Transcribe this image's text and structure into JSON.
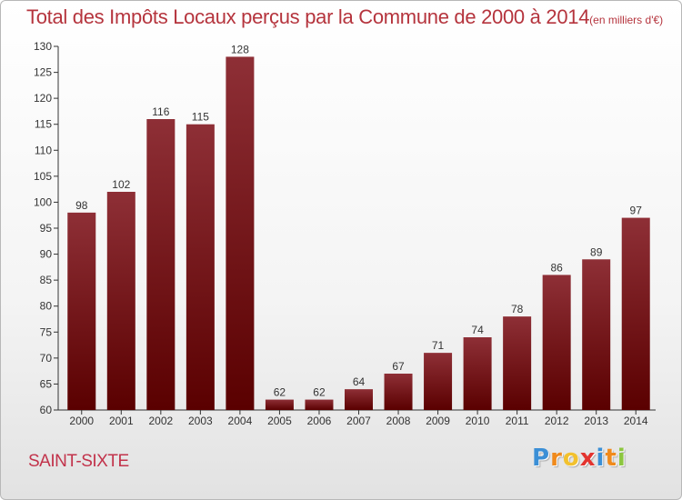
{
  "chart_data": {
    "type": "bar",
    "title": "Total des Impôts Locaux perçus par la Commune de 2000 à 2014",
    "unit": "(en milliers d'€)",
    "categories": [
      "2000",
      "2001",
      "2002",
      "2003",
      "2004",
      "2005",
      "2006",
      "2007",
      "2008",
      "2009",
      "2010",
      "2011",
      "2012",
      "2013",
      "2014"
    ],
    "values": [
      98,
      102,
      116,
      115,
      128,
      62,
      62,
      64,
      67,
      71,
      74,
      78,
      86,
      89,
      97
    ],
    "ylim": [
      60,
      130
    ],
    "yticks": [
      60,
      65,
      70,
      75,
      80,
      85,
      90,
      95,
      100,
      105,
      110,
      115,
      120,
      125,
      130
    ],
    "xlabel": "",
    "ylabel": "",
    "grid": false,
    "bar_color": "#7a1a22"
  },
  "commune": "SAINT-SIXTE",
  "logo": {
    "letters": [
      "P",
      "r",
      "o",
      "x",
      "i",
      "t",
      "i"
    ],
    "colors": [
      "#3b8fd6",
      "#f08a1c",
      "#f2c12e",
      "#e3342f",
      "#3b8fd6",
      "#f08a1c",
      "#8cc63f"
    ]
  }
}
